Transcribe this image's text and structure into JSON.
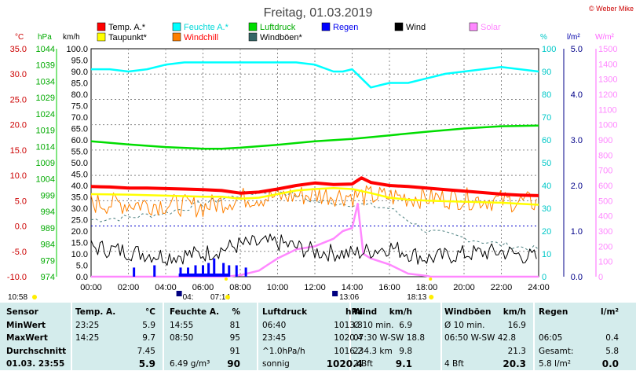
{
  "title": "Freitag, 01.03.2019",
  "credit": "© Weber Mike",
  "legend": [
    {
      "label": "Temp. A.*",
      "color": "#ff0000",
      "text_color": "#000000"
    },
    {
      "label": "Feuchte A.*",
      "color": "#00ffff",
      "text_color": "#00d8d8"
    },
    {
      "label": "Luftdruck",
      "color": "#00dd00",
      "text_color": "#00aa00"
    },
    {
      "label": "Regen",
      "color": "#0000ff",
      "text_color": "#0000ee"
    },
    {
      "label": "Wind",
      "color": "#000000",
      "text_color": "#000000"
    },
    {
      "label": "Solar",
      "color": "#ff88ff",
      "text_color": "#ff88ff"
    },
    {
      "label": "Taupunkt*",
      "color": "#ffff00",
      "text_color": "#000000"
    },
    {
      "label": "Windchill",
      "color": "#ff8000",
      "text_color": "#ff0000"
    },
    {
      "label": "Windböen*",
      "color": "#336666",
      "text_color": "#000000"
    }
  ],
  "axis_units": {
    "temp": "°C",
    "pressure": "hPa",
    "wind": "km/h",
    "humidity": "%",
    "rain": "l/m²",
    "solar": "W/m²"
  },
  "temp_ticks": [
    "35.0",
    "30.0",
    "25.0",
    "20.0",
    "15.0",
    "10.0",
    "5.0",
    "0.0",
    "-5.0",
    "-10.0"
  ],
  "pressure_ticks": [
    "1044",
    "1039",
    "1034",
    "1029",
    "1024",
    "1019",
    "1014",
    "1009",
    "1004",
    "999",
    "994",
    "989",
    "984",
    "979",
    "974"
  ],
  "wind_ticks": [
    "100.0",
    "95.0",
    "90.0",
    "85.0",
    "80.0",
    "75.0",
    "70.0",
    "65.0",
    "60.0",
    "55.0",
    "50.0",
    "45.0",
    "40.0",
    "35.0",
    "30.0",
    "25.0",
    "20.0",
    "15.0",
    "10.0",
    "5.0",
    "0.0"
  ],
  "humidity_ticks": [
    "100",
    "90",
    "80",
    "70",
    "60",
    "50",
    "40",
    "30",
    "20",
    "10",
    "0"
  ],
  "rain_ticks": [
    "5.0",
    "4.0",
    "3.0",
    "2.0",
    "1.0",
    "0.0"
  ],
  "solar_ticks": [
    "1500",
    "1400",
    "1300",
    "1200",
    "1100",
    "1000",
    "900",
    "800",
    "700",
    "600",
    "500",
    "400",
    "300",
    "200",
    "100",
    "0"
  ],
  "x_ticks": [
    "00:00",
    "02:00",
    "04:00",
    "06:00",
    "08:00",
    "10:00",
    "12:00",
    "14:00",
    "16:00",
    "18:00",
    "20:00",
    "22:00",
    "24:00"
  ],
  "astro": {
    "moonrise": "10:58",
    "sunrise": "07:14",
    "moonset": "04:",
    "noon": "13:06",
    "sunset": "18:13"
  },
  "chart_data": {
    "type": "line",
    "title": "Freitag, 01.03.2019",
    "x_unit": "hours",
    "xlim": [
      0,
      24
    ],
    "series": [
      {
        "name": "Temp. A.*",
        "axis": "°C",
        "ylim": [
          -10,
          35
        ],
        "x": [
          0,
          1,
          2,
          3,
          4,
          5,
          6,
          7,
          8,
          9,
          10,
          11,
          12,
          13,
          14,
          14.5,
          15,
          16,
          17,
          18,
          19,
          20,
          21,
          22,
          23,
          24
        ],
        "values": [
          7.8,
          7.7,
          7.5,
          7.5,
          7.4,
          7.3,
          7.2,
          7.0,
          6.5,
          6.7,
          7.3,
          8.0,
          8.5,
          8.2,
          8.3,
          9.5,
          8.6,
          8.0,
          7.8,
          7.5,
          7.2,
          6.9,
          6.6,
          6.3,
          6.1,
          6.0
        ]
      },
      {
        "name": "Taupunkt*",
        "axis": "°C",
        "ylim": [
          -10,
          35
        ],
        "x": [
          0,
          2,
          4,
          6,
          7,
          8,
          9,
          10,
          11,
          12,
          13,
          14,
          15,
          16,
          17,
          18,
          19,
          20,
          21,
          22,
          23,
          24
        ],
        "values": [
          6.3,
          6.2,
          6.0,
          5.8,
          5.8,
          5.4,
          5.6,
          6.3,
          7.0,
          7.3,
          7.5,
          7.3,
          6.5,
          5.6,
          5.2,
          5.0,
          4.9,
          4.8,
          4.7,
          4.6,
          4.4,
          4.2
        ]
      },
      {
        "name": "Windchill",
        "axis": "°C",
        "ylim": [
          -10,
          35
        ],
        "style": "noisy",
        "x": [
          0,
          2,
          4,
          6,
          8,
          10,
          12,
          14,
          16,
          18,
          20,
          22,
          24
        ],
        "values": [
          4.5,
          4.4,
          4.3,
          3.8,
          5.5,
          5.8,
          6.2,
          6.0,
          5.8,
          5.6,
          5.4,
          5.0,
          4.6
        ]
      },
      {
        "name": "Feuchte A.*",
        "axis": "%",
        "ylim": [
          0,
          100
        ],
        "x": [
          0,
          1,
          2,
          3,
          4,
          5,
          6,
          7,
          8,
          9,
          10,
          11,
          12,
          13,
          13.5,
          14,
          14.5,
          15,
          15.5,
          16,
          17,
          18,
          19,
          20,
          21,
          22,
          23,
          24
        ],
        "values": [
          91,
          91,
          90,
          91,
          93,
          94,
          94,
          94,
          94,
          94,
          94,
          94,
          93,
          90,
          90,
          91,
          87,
          83,
          84,
          85,
          85,
          87,
          89,
          90,
          91,
          92,
          91,
          90
        ]
      },
      {
        "name": "Luftdruck",
        "axis": "hPa",
        "ylim": [
          974,
          1044
        ],
        "x": [
          0,
          2,
          4,
          6,
          7,
          8,
          10,
          12,
          14,
          16,
          18,
          20,
          22,
          24
        ],
        "values": [
          1015.6,
          1014.6,
          1013.8,
          1013.3,
          1013.3,
          1013.6,
          1014.5,
          1015.6,
          1016.3,
          1017.4,
          1018.5,
          1019.5,
          1020.2,
          1020.4
        ]
      },
      {
        "name": "Wind",
        "axis": "km/h",
        "ylim": [
          0,
          100
        ],
        "style": "noisy",
        "x": [
          0,
          2,
          4,
          6,
          8,
          10,
          12,
          14,
          16,
          18,
          20,
          22,
          24
        ],
        "values": [
          13,
          11,
          9,
          10,
          14,
          15,
          11,
          10,
          13,
          8,
          10,
          11,
          8
        ]
      },
      {
        "name": "Windböen*",
        "axis": "km/h",
        "ylim": [
          0,
          100
        ],
        "style": "dashed",
        "x": [
          0,
          2,
          4,
          6,
          8,
          10,
          12,
          14,
          16,
          18,
          20,
          22,
          24
        ],
        "values": [
          25,
          26,
          28,
          32,
          36,
          38,
          33,
          32,
          30,
          20,
          17,
          14,
          12
        ]
      },
      {
        "name": "Solar",
        "axis": "W/m²",
        "ylim": [
          0,
          1500
        ],
        "x": [
          0,
          7.2,
          8,
          9,
          9.5,
          10,
          11,
          12,
          13,
          13.5,
          14,
          14.3,
          14.6,
          15,
          16,
          17,
          18,
          18.2,
          24
        ],
        "values": [
          0,
          0,
          10,
          40,
          80,
          120,
          180,
          200,
          250,
          300,
          320,
          480,
          150,
          120,
          80,
          20,
          5,
          0,
          0
        ]
      }
    ],
    "rain_markers_x": [
      2.3,
      3.4,
      4.8,
      5.2,
      5.6,
      6,
      6.3,
      6.6,
      7.1,
      7.4,
      7.8,
      8.3
    ],
    "rain_marker_heights_kmh": [
      4,
      5,
      4,
      4,
      5,
      5,
      6,
      8,
      6,
      5,
      5,
      4
    ]
  },
  "stats": {
    "header": [
      "Sensor",
      "Temp. A.",
      "°C",
      "Feuchte A.",
      "%",
      "Luftdruck",
      "hPa",
      "Wind",
      "km/h",
      "Windböen",
      "km/h",
      "Regen",
      "l/m²"
    ],
    "rows": [
      [
        "MinWert",
        "23:25",
        "5.9",
        "14:55",
        "81",
        "06:40",
        "1013.3",
        "Ø 10 min.",
        "6.9",
        "Ø 10 min.",
        "16.9",
        "",
        ""
      ],
      [
        "MaxWert",
        "14:25",
        "9.7",
        "08:50",
        "95",
        "23:45",
        "1020.4",
        "07:30  W-SW 18.8",
        "",
        "06:50  W-SW 42.8",
        "",
        "06:05",
        "0.4"
      ],
      [
        "Durchschnitt",
        "",
        "7.45",
        "",
        "91",
        "^1.0hPa/h",
        "1016.2",
        "234.3 km",
        "9.8",
        "",
        "21.3",
        "Gesamt:",
        "5.8"
      ],
      [
        "01.03. 23:55",
        "",
        "5.9",
        "6.49 g/m³",
        "90",
        "sonnig",
        "1020.4",
        "2 Bft",
        "9.1",
        "4 Bft",
        "20.3",
        "5.8 l/m²",
        "0.0"
      ]
    ]
  }
}
